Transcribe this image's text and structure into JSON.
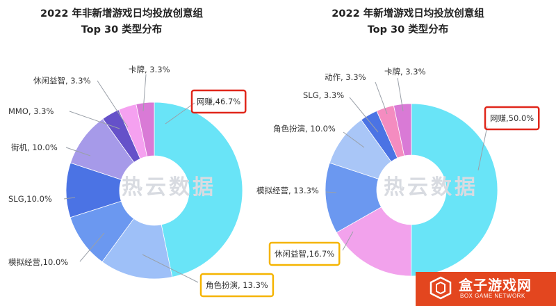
{
  "chart_data": [
    {
      "type": "pie",
      "title": "2022 年非新增游戏日均投放创意组",
      "subtitle": "Top 30 类型分布",
      "slices": [
        {
          "label": "网赚,46.7%",
          "value": 46.7,
          "color": "#69e4f7",
          "highlight": "red"
        },
        {
          "label": "角色扮演, 13.3%",
          "value": 13.3,
          "color": "#9ec0f8",
          "highlight": "yellow"
        },
        {
          "label": "模拟经营,10.0%",
          "value": 10.0,
          "color": "#6b98f0",
          "highlight": ""
        },
        {
          "label": "SLG,10.0%",
          "value": 10.0,
          "color": "#4b73e4",
          "highlight": ""
        },
        {
          "label": "街机, 10.0%",
          "value": 10.0,
          "color": "#a69ae9",
          "highlight": ""
        },
        {
          "label": "MMO, 3.3%",
          "value": 3.3,
          "color": "#6551c9",
          "highlight": ""
        },
        {
          "label": "休闲益智, 3.3%",
          "value": 3.3,
          "color": "#f5a1f0",
          "highlight": ""
        },
        {
          "label": "卡牌, 3.3%",
          "value": 3.3,
          "color": "#d97ad6",
          "highlight": ""
        }
      ]
    },
    {
      "type": "pie",
      "title": "2022 年新增游戏日均投放创意组",
      "subtitle": "Top 30 类型分布",
      "slices": [
        {
          "label": "网赚,50.0%",
          "value": 50.0,
          "color": "#69e4f7",
          "highlight": "red"
        },
        {
          "label": "休闲益智,16.7%",
          "value": 16.7,
          "color": "#f2a2ec",
          "highlight": "yellow"
        },
        {
          "label": "模拟经营, 13.3%",
          "value": 13.3,
          "color": "#6b98f0",
          "highlight": ""
        },
        {
          "label": "角色扮演, 10.0%",
          "value": 10.0,
          "color": "#a9c6f7",
          "highlight": ""
        },
        {
          "label": "SLG, 3.3%",
          "value": 3.3,
          "color": "#4b73e4",
          "highlight": ""
        },
        {
          "label": "动作, 3.3%",
          "value": 3.3,
          "color": "#f48cc0",
          "highlight": ""
        },
        {
          "label": "卡牌, 3.3%",
          "value": 3.3,
          "color": "#d97ad6",
          "highlight": ""
        }
      ]
    }
  ],
  "watermark": "热云数据",
  "brand": {
    "name": "盒子游戏网",
    "sub": "BOX GAME NETWORK"
  }
}
